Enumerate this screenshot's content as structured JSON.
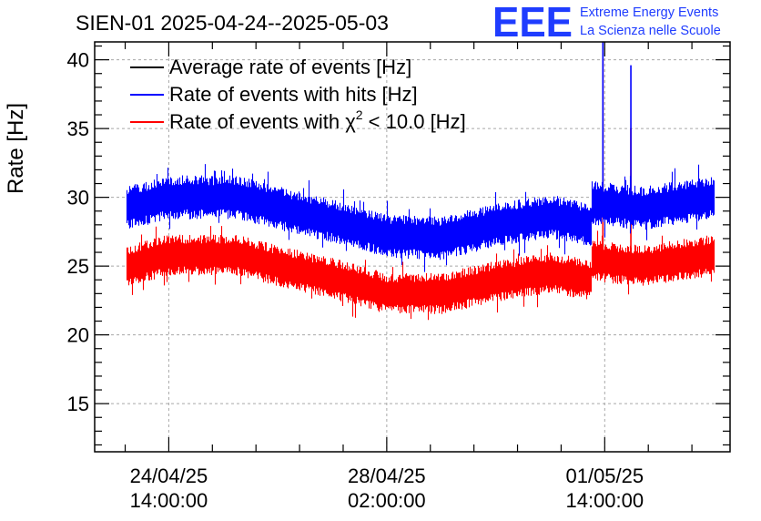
{
  "chart_data": {
    "type": "line",
    "title": "SIEN-01 2025-04-24--2025-05-03",
    "xlabel": "",
    "ylabel": "Rate [Hz]",
    "ylim": [
      11.5,
      41.3
    ],
    "yticks": [
      15,
      20,
      25,
      30,
      35,
      40
    ],
    "x_unit": "hours since 24/04/25 14:00:00",
    "xlim": [
      -20.4,
      154.5
    ],
    "xticks": [
      {
        "x": 0,
        "date": "24/04/25",
        "time": "14:00:00"
      },
      {
        "x": 60,
        "date": "28/04/25",
        "time": "02:00:00"
      },
      {
        "x": 120,
        "date": "01/05/25",
        "time": "14:00:00"
      }
    ],
    "grid": true,
    "legend_position": "top-left",
    "series": [
      {
        "name": "Average rate of events [Hz]",
        "color": "#000000",
        "x": [],
        "y": []
      },
      {
        "name": "Rate of events with hits [Hz]",
        "color": "#0000ff",
        "x": [
          -11.7,
          0,
          19,
          30,
          45,
          60,
          75,
          90,
          105,
          116.2,
          116.4,
          130,
          150
        ],
        "y": [
          29.2,
          30.0,
          30.0,
          29.2,
          28.3,
          27.2,
          27.0,
          28.0,
          28.6,
          28.0,
          29.6,
          29.2,
          30.0
        ],
        "noise_halfwidth": 1.6,
        "spikes": [
          {
            "x": 119.5,
            "y": 41.3
          },
          {
            "x": 127.2,
            "y": 39.6
          }
        ]
      },
      {
        "name": "Rate of events with χ² < 10.0 [Hz]",
        "color": "#ff0000",
        "x": [
          -11.7,
          0,
          19,
          30,
          45,
          60,
          75,
          90,
          105,
          116.2,
          116.4,
          130,
          150
        ],
        "y": [
          25.0,
          25.8,
          25.8,
          25.0,
          24.1,
          23.0,
          23.0,
          23.9,
          24.5,
          24.0,
          25.4,
          25.0,
          25.8
        ],
        "noise_halfwidth": 1.5,
        "spikes": [
          {
            "x": 119.5,
            "y": 40.1
          },
          {
            "x": 127.2,
            "y": 35.0
          }
        ]
      }
    ],
    "legend_entries": [
      {
        "label": "Average rate of events [Hz]",
        "color": "#000000"
      },
      {
        "label_main": "Rate of events with hits [Hz]",
        "color": "#0000ff"
      },
      {
        "label_before": "Rate of events with χ",
        "label_sup": "2",
        "label_after": " < 10.0 [Hz]",
        "color": "#ff0000"
      }
    ]
  },
  "logo": {
    "mark": "EEE",
    "line1": "Extreme Energy Events",
    "line2": "La Scienza nelle Scuole"
  }
}
